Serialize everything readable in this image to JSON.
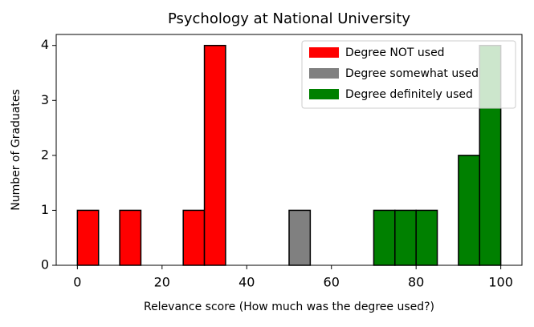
{
  "chart_data": {
    "type": "histogram",
    "title": "Psychology at National University",
    "x_label": "Relevance score (How much was the degree used?)",
    "y_label": "Number of Graduates",
    "bins": [
      0,
      5,
      10,
      15,
      20,
      25,
      30,
      35,
      40,
      45,
      50,
      55,
      60,
      65,
      70,
      75,
      80,
      85,
      90,
      95,
      100
    ],
    "series": [
      {
        "name": "Degree NOT used",
        "color": "#ff0000",
        "values": [
          1,
          0,
          1,
          0,
          0,
          1,
          4,
          0,
          0,
          0,
          0,
          0,
          0,
          0,
          0,
          0,
          0,
          0,
          0,
          0
        ]
      },
      {
        "name": "Degree somewhat used",
        "color": "#808080",
        "values": [
          0,
          0,
          0,
          0,
          0,
          0,
          0,
          0,
          0,
          0,
          1,
          0,
          0,
          0,
          0,
          0,
          0,
          0,
          0,
          0
        ]
      },
      {
        "name": "Degree definitely used",
        "color": "#008000",
        "values": [
          0,
          0,
          0,
          0,
          0,
          0,
          0,
          0,
          0,
          0,
          0,
          0,
          0,
          0,
          1,
          1,
          1,
          0,
          2,
          4
        ]
      }
    ],
    "xlim": [
      -5,
      105
    ],
    "xticks": [
      0,
      20,
      40,
      60,
      80,
      100
    ],
    "ylim": [
      0,
      4.2
    ],
    "yticks": [
      0,
      1,
      2,
      3,
      4
    ],
    "legend": "upper right"
  }
}
